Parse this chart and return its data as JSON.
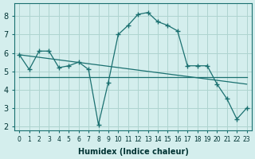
{
  "title": "",
  "xlabel": "Humidex (Indice chaleur)",
  "ylabel": "",
  "bg_color": "#d4eeed",
  "grid_color": "#aed4d0",
  "line_color": "#1a7070",
  "x": [
    0,
    1,
    2,
    3,
    4,
    5,
    6,
    7,
    8,
    9,
    10,
    11,
    12,
    13,
    14,
    15,
    16,
    17,
    18,
    19,
    20,
    21,
    22,
    23
  ],
  "series1": [
    5.9,
    5.1,
    6.1,
    6.1,
    5.2,
    5.3,
    5.5,
    5.1,
    2.1,
    4.4,
    7.0,
    7.5,
    8.1,
    8.2,
    7.7,
    7.5,
    7.2,
    5.3,
    5.3,
    5.3,
    4.3,
    3.5,
    2.4,
    3.0
  ],
  "line2_x": [
    0,
    23
  ],
  "line2_y": [
    5.9,
    4.3
  ],
  "line3_x": [
    0,
    23
  ],
  "line3_y": [
    4.7,
    4.7
  ],
  "ylim": [
    1.8,
    8.7
  ],
  "xlim": [
    -0.5,
    23.5
  ],
  "yticks": [
    2,
    3,
    4,
    5,
    6,
    7,
    8
  ],
  "xticks": [
    0,
    1,
    2,
    3,
    4,
    5,
    6,
    7,
    8,
    9,
    10,
    11,
    12,
    13,
    14,
    15,
    16,
    17,
    18,
    19,
    20,
    21,
    22,
    23
  ],
  "tick_fontsize": 5.5,
  "xlabel_fontsize": 7
}
